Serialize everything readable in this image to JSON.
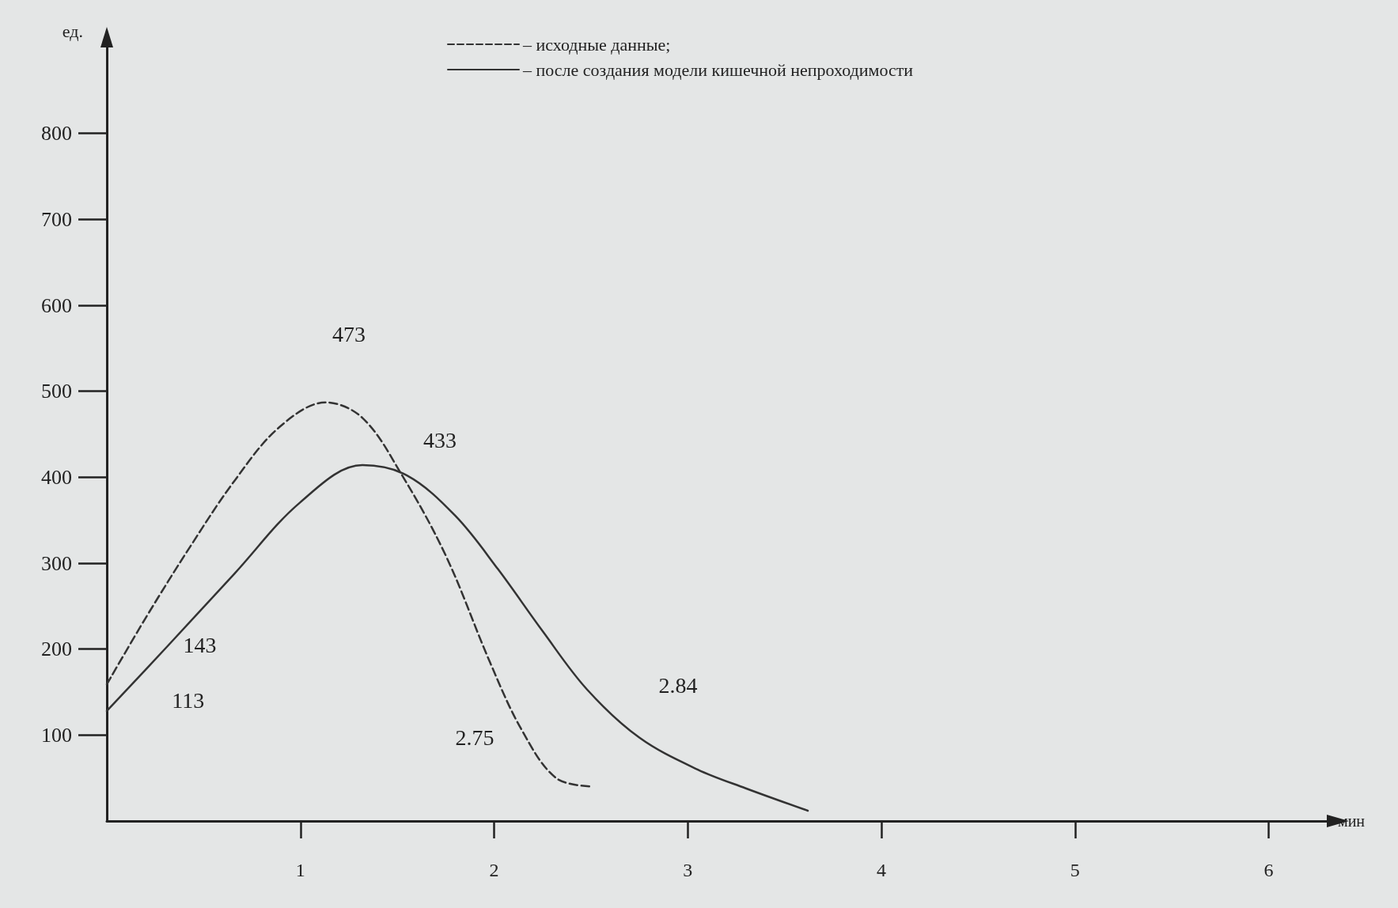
{
  "chart_data": {
    "type": "line",
    "xlabel": "мин",
    "ylabel": "ед.",
    "xlim": [
      0,
      6.3
    ],
    "xticks": [
      1,
      2,
      3,
      4,
      5,
      6
    ],
    "ylim": [
      0,
      900
    ],
    "yticks": [
      100,
      200,
      300,
      400,
      500,
      600,
      700,
      800
    ],
    "grid": false,
    "legend": "top",
    "marker": "none",
    "series": [
      {
        "name": "– исходные данные;",
        "color": "#333333",
        "line_style": "dashed",
        "x": [
          0,
          0.2,
          0.43,
          0.66,
          0.89,
          1.13,
          1.32,
          1.52,
          1.75,
          1.98,
          2.14,
          2.32,
          2.51
        ],
        "values": [
          159,
          236,
          319,
          396,
          458,
          487,
          469,
          404,
          309,
          184,
          107,
          50,
          40
        ]
      },
      {
        "name": "– после создания модели кишечной непроходимости",
        "color": "#333333",
        "line_style": "solid",
        "x": [
          0,
          0.32,
          0.66,
          1.0,
          1.32,
          1.55,
          1.8,
          2.02,
          2.25,
          2.48,
          2.75,
          3.05,
          3.3,
          3.62
        ],
        "values": [
          128,
          205,
          288,
          371,
          414,
          402,
          355,
          293,
          221,
          153,
          97,
          60,
          38,
          12
        ]
      }
    ],
    "annotations": [
      "473",
      "433",
      "143",
      "113",
      "2.75",
      "2.84"
    ]
  }
}
